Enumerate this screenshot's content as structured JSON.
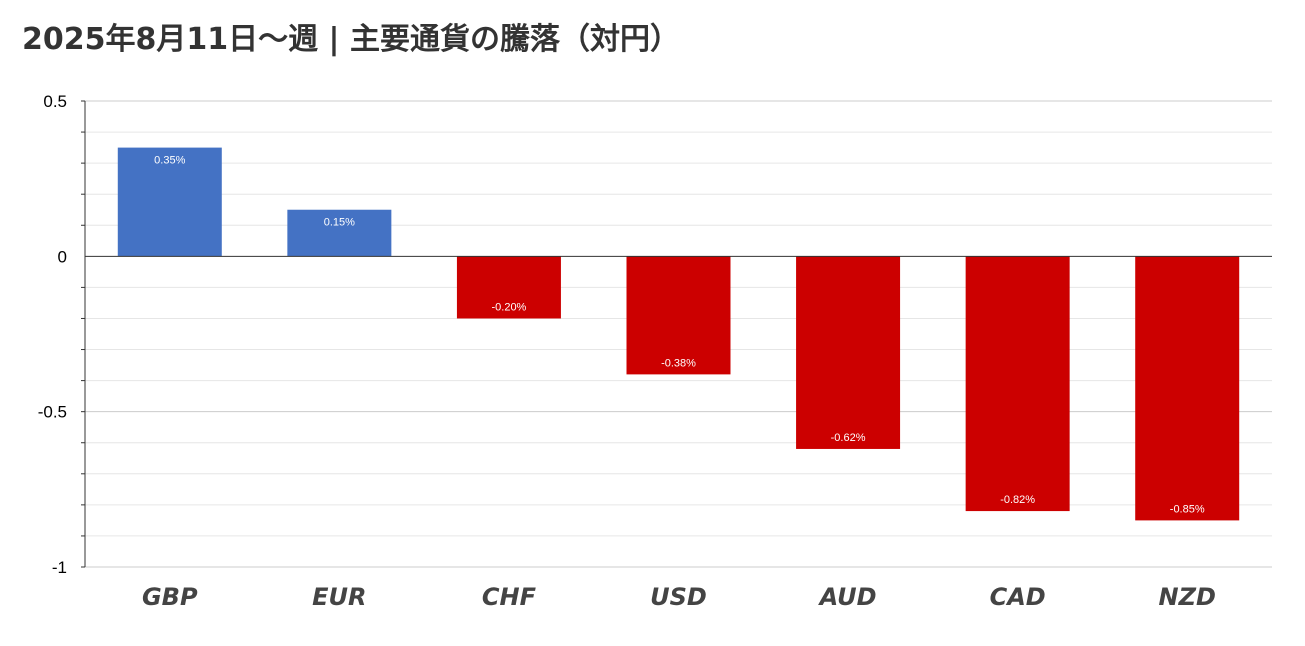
{
  "chart_data": {
    "type": "bar",
    "title": "2025年8月11日～週 | 主要通貨の騰落（対円）",
    "categories": [
      "GBP",
      "EUR",
      "CHF",
      "USD",
      "AUD",
      "CAD",
      "NZD"
    ],
    "values": [
      0.35,
      0.15,
      -0.2,
      -0.38,
      -0.62,
      -0.82,
      -0.85
    ],
    "data_labels": [
      "0.35%",
      "0.15%",
      "-0.20%",
      "-0.38%",
      "-0.62%",
      "-0.82%",
      "-0.85%"
    ],
    "ylim": [
      -1,
      0.5
    ],
    "yticks": [
      0.5,
      0,
      -0.5,
      -1
    ],
    "ytick_labels": [
      "0.5",
      "0",
      "-0.5",
      "-1"
    ],
    "grid": true,
    "colors": {
      "positive": "#4472C4",
      "negative": "#CC0000"
    }
  }
}
